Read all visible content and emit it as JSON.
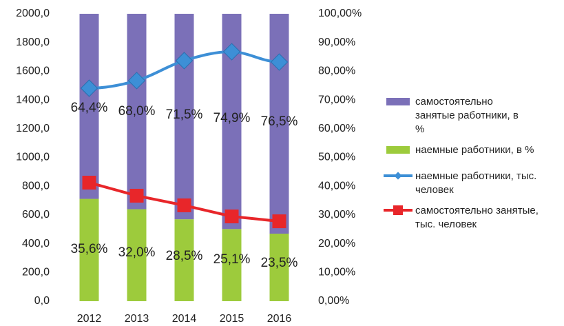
{
  "chart_data": {
    "type": "bar",
    "categories": [
      "2012",
      "2013",
      "2014",
      "2015",
      "2016"
    ],
    "series": [
      {
        "name": "наемные работники, в %",
        "color": "#9dcb3c",
        "type": "bar",
        "axis": "y2",
        "values": [
          35.6,
          32.0,
          28.5,
          25.1,
          23.5
        ],
        "value_labels": [
          "35,6%",
          "32,0%",
          "28,5%",
          "25,1%",
          "23,5%"
        ]
      },
      {
        "name": "самостоятельно занятые работники, в %",
        "color": "#7b70b8",
        "type": "bar",
        "axis": "y2",
        "values": [
          64.4,
          68.0,
          71.5,
          74.9,
          76.5
        ],
        "value_labels": [
          "64,4%",
          "68,0%",
          "71,5%",
          "74,9%",
          "76,5%"
        ]
      },
      {
        "name": "наемные работники, тыс. человек",
        "color": "#3d8fd6",
        "type": "line",
        "marker": "diamond",
        "values": [
          1482,
          1535,
          1674,
          1736,
          1664
        ]
      },
      {
        "name": "самостоятельно занятые, тыс. человек",
        "color": "#e8262a",
        "type": "line",
        "marker": "square",
        "values": [
          825,
          734,
          667,
          590,
          556
        ]
      }
    ],
    "ylim": [
      0,
      2000
    ],
    "yticks": [
      {
        "value": 0,
        "label": "0,0"
      },
      {
        "value": 200,
        "label": "200,0"
      },
      {
        "value": 400,
        "label": "400,0"
      },
      {
        "value": 600,
        "label": "600,0"
      },
      {
        "value": 800,
        "label": "800,0"
      },
      {
        "value": 1000,
        "label": "1000,0"
      },
      {
        "value": 1200,
        "label": "1200,0"
      },
      {
        "value": 1400,
        "label": "1400,0"
      },
      {
        "value": 1600,
        "label": "1600,0"
      },
      {
        "value": 1800,
        "label": "1800,0"
      },
      {
        "value": 2000,
        "label": "2000,0"
      }
    ],
    "y2lim": [
      0,
      100
    ],
    "y2ticks": [
      {
        "value": 0,
        "label": "0,00%"
      },
      {
        "value": 10,
        "label": "10,00%"
      },
      {
        "value": 20,
        "label": "20,00%"
      },
      {
        "value": 30,
        "label": "30,00%"
      },
      {
        "value": 40,
        "label": "40,00%"
      },
      {
        "value": 50,
        "label": "50,00%"
      },
      {
        "value": 60,
        "label": "60,00%"
      },
      {
        "value": 70,
        "label": "70,00%"
      },
      {
        "value": 80,
        "label": "80,00%"
      },
      {
        "value": 90,
        "label": "90,00%"
      },
      {
        "value": 100,
        "label": "100,00%"
      }
    ],
    "grid": false
  }
}
